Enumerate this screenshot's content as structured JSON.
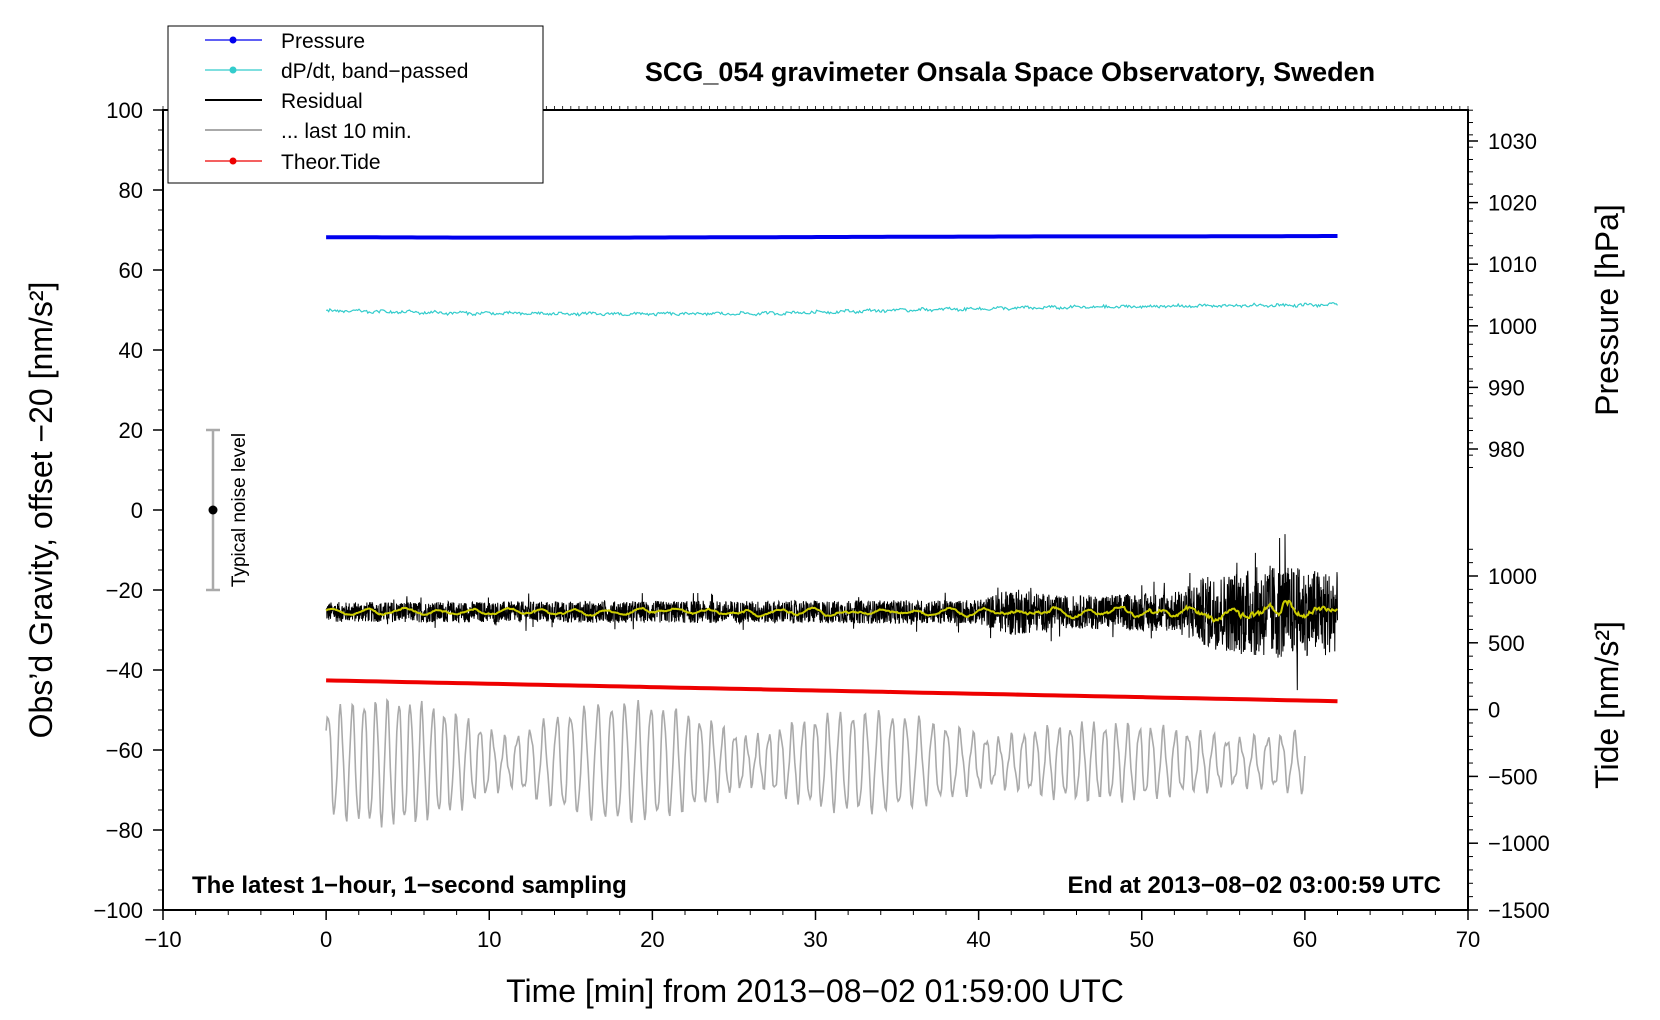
{
  "chart_data": {
    "type": "line",
    "title": "SCG_054 gravimeter Onsala Space Observatory, Sweden",
    "xlabel": "Time [min] from 2013−08−02 01:59:00 UTC",
    "ylabel_left": "Obs’d Gravity, offset −20 [nm/s²]",
    "ylabel_right_pressure": "Pressure [hPa]",
    "ylabel_right_tide": "Tide [nm/s²]",
    "xlim": [
      -10,
      70
    ],
    "ylim": [
      -100,
      100
    ],
    "x_ticks": [
      "−10",
      "0",
      "10",
      "20",
      "30",
      "40",
      "50",
      "60",
      "70"
    ],
    "y_ticks": [
      "100",
      "80",
      "60",
      "40",
      "20",
      "0",
      "−20",
      "−40",
      "−60",
      "−80",
      "−100"
    ],
    "pressure_ticks": [
      "1030",
      "1020",
      "1010",
      "1000",
      "990",
      "980"
    ],
    "tide_ticks": [
      "1000",
      "500",
      "0",
      "−500",
      "−1000",
      "−1500"
    ],
    "note_left": "The latest 1−hour, 1−second sampling",
    "note_right": "End at 2013−08−02 03:00:59 UTC",
    "noise_label": "Typical noise level",
    "noise_bar": {
      "x": -7,
      "center": 0,
      "low": -20,
      "high": 20
    },
    "legend": [
      {
        "name": "Pressure",
        "color": "#0000ee",
        "marker": true
      },
      {
        "name": "dP/dt, band−passed",
        "color": "#33cccc",
        "marker": true
      },
      {
        "name": "Residual",
        "color": "#000000",
        "marker": false
      },
      {
        "name": "... last 10 min.",
        "color": "#aaaaaa",
        "marker": false
      },
      {
        "name": "Theor.Tide",
        "color": "#ee0000",
        "marker": true
      }
    ],
    "series": [
      {
        "name": "Pressure",
        "color": "#0000ee",
        "x_range": [
          0,
          62
        ],
        "values": [
          68.2,
          68.1,
          68.1,
          68.2,
          68.3,
          68.4,
          68.4,
          68.5
        ]
      },
      {
        "name": "dP/dt, band−passed",
        "color": "#33cccc",
        "x_range": [
          0,
          62
        ],
        "values": [
          49.8,
          49.2,
          49.0,
          49.1,
          50.0,
          50.6,
          51.0,
          51.3
        ]
      },
      {
        "name": "Residual",
        "color": "#000000",
        "x_range": [
          0,
          62
        ],
        "center": -25.5,
        "amplitude_by_minute": [
          [
            0,
            2.5
          ],
          [
            40,
            3.0
          ],
          [
            42,
            6.0
          ],
          [
            45,
            4.0
          ],
          [
            52,
            5.0
          ],
          [
            54,
            9.0
          ],
          [
            58,
            12.0
          ],
          [
            62,
            10.0
          ]
        ]
      },
      {
        "name": "Residual (smoothed)",
        "color": "#cccc00",
        "x_range": [
          0,
          62
        ],
        "center": -25.5
      },
      {
        "name": "... last 10 min.",
        "color": "#aaaaaa",
        "x_range": [
          0,
          60
        ],
        "center": -63,
        "amplitude": 15
      },
      {
        "name": "Theor.Tide",
        "color": "#ee0000",
        "x_range": [
          0,
          62
        ],
        "values": [
          -42.6,
          -47.8
        ]
      }
    ]
  }
}
